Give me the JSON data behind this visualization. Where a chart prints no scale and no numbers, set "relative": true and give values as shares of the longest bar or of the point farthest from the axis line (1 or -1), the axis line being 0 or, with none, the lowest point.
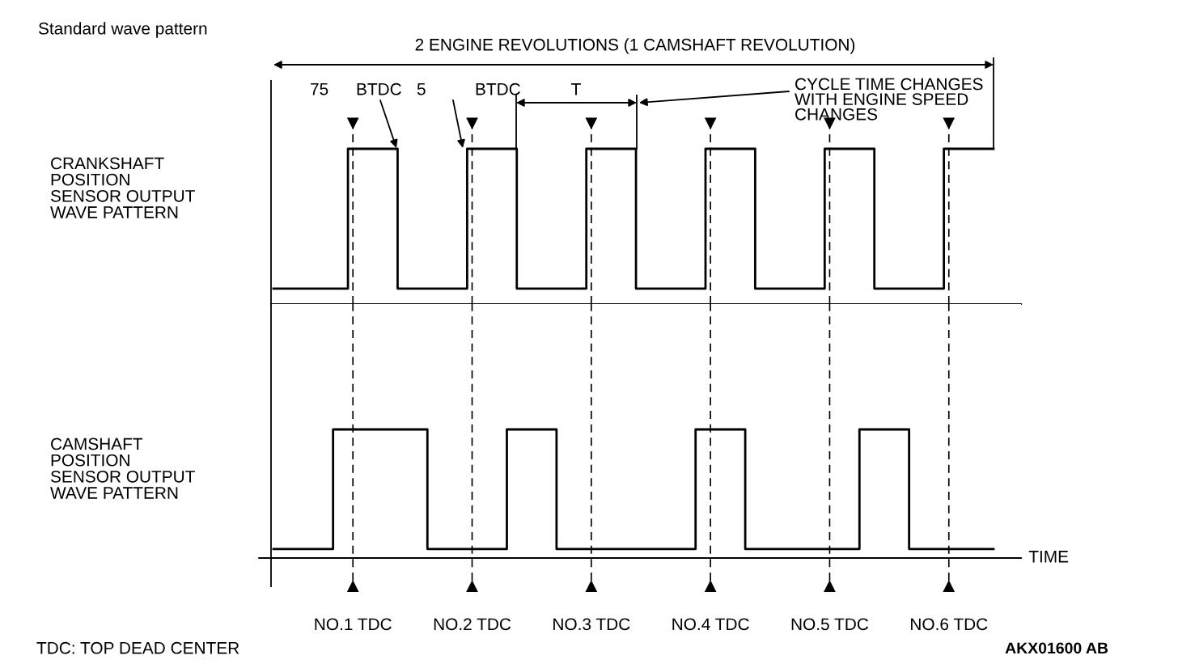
{
  "chart_data": [
    {
      "type": "step",
      "title": "Standard wave pattern",
      "relative": true,
      "ylabel": "CRANKSHAFT\nPOSITION\nSENSOR OUTPUT\nWAVE PATTERN",
      "tick_labels": false,
      "grid": "x",
      "line_style": "solid",
      "categories": [
        null,
        null,
        null,
        null,
        null,
        null,
        null,
        null,
        null,
        null,
        null,
        null,
        null,
        null,
        null,
        null,
        null,
        null,
        null,
        null,
        null,
        null,
        null,
        null,
        null,
        null,
        null,
        null,
        null,
        null,
        null,
        null,
        null,
        null,
        null,
        null,
        null,
        null,
        null,
        null,
        null,
        null,
        null,
        null,
        null,
        null,
        null,
        null,
        null,
        null,
        null,
        null,
        null,
        null,
        null,
        null,
        null,
        null,
        null,
        null,
        null,
        null,
        null,
        null,
        null,
        null,
        null,
        null,
        null,
        null,
        null,
        null,
        null,
        null,
        null,
        null,
        null,
        null,
        null,
        null,
        null,
        null,
        null,
        null,
        null,
        null,
        null,
        null,
        null,
        null,
        null,
        null,
        null,
        null,
        null,
        null,
        null,
        null,
        null,
        null,
        null,
        null,
        null,
        null,
        null,
        null,
        null,
        null,
        null,
        null,
        null,
        null,
        null,
        null,
        null,
        null,
        null,
        null,
        null,
        null,
        null,
        null,
        null,
        null,
        null,
        null,
        null,
        null,
        null,
        null,
        null,
        null,
        null,
        null,
        null,
        null,
        null,
        null,
        null,
        null,
        null,
        null,
        null,
        null,
        null,
        null
      ],
      "series": [
        {
          "color": "#000000",
          "values": [
            0.1,
            0.1,
            0.1,
            0.1,
            0.1,
            0.1,
            0.1,
            0.1,
            0.1,
            0.1,
            0.1,
            0.1,
            0.1,
            0.1,
            0.1,
            1,
            1,
            1,
            1,
            1,
            1,
            1,
            1,
            1,
            1,
            0.1,
            0.1,
            0.1,
            0.1,
            0.1,
            0.1,
            0.1,
            0.1,
            0.1,
            0.1,
            0.1,
            0.1,
            0.1,
            0.1,
            1,
            1,
            1,
            1,
            1,
            1,
            1,
            1,
            1,
            1,
            0.1,
            0.1,
            0.1,
            0.1,
            0.1,
            0.1,
            0.1,
            0.1,
            0.1,
            0.1,
            0.1,
            0.1,
            0.1,
            0.1,
            1,
            1,
            1,
            1,
            1,
            1,
            1,
            1,
            1,
            1,
            0.1,
            0.1,
            0.1,
            0.1,
            0.1,
            0.1,
            0.1,
            0.1,
            0.1,
            0.1,
            0.1,
            0.1,
            0.1,
            0.1,
            1,
            1,
            1,
            1,
            1,
            1,
            1,
            1,
            1,
            1,
            0.1,
            0.1,
            0.1,
            0.1,
            0.1,
            0.1,
            0.1,
            0.1,
            0.1,
            0.1,
            0.1,
            0.1,
            0.1,
            0.1,
            1,
            1,
            1,
            1,
            1,
            1,
            1,
            1,
            1,
            1,
            0.1,
            0.1,
            0.1,
            0.1,
            0.1,
            0.1,
            0.1,
            0.1,
            0.1,
            0.1,
            0.1,
            0.1,
            0.1,
            0.1,
            1,
            1,
            1,
            1,
            1,
            1,
            1,
            1,
            1,
            1,
            1
          ]
        }
      ],
      "annotations": [
        "2 ENGINE REVOLUTIONS (1 CAMSHAFT REVOLUTION)",
        "75",
        "BTDC",
        "5",
        "BTDC",
        "T",
        "CYCLE TIME CHANGES\nWITH ENGINE SPEED\nCHANGES"
      ]
    },
    {
      "type": "step",
      "relative": true,
      "ylabel": "CAMSHAFT\nPOSITION\nSENSOR OUTPUT\nWAVE PATTERN",
      "xlabel": "TIME",
      "tick_labels": "x",
      "grid": "x",
      "line_style": "solid",
      "categories": [
        null,
        null,
        null,
        null,
        null,
        null,
        null,
        null,
        null,
        null,
        null,
        null,
        null,
        null,
        null,
        null,
        "NO.1 TDC",
        null,
        null,
        null,
        null,
        null,
        null,
        null,
        null,
        null,
        null,
        null,
        null,
        null,
        null,
        null,
        null,
        null,
        null,
        null,
        null,
        null,
        null,
        null,
        "NO.2 TDC",
        null,
        null,
        null,
        null,
        null,
        null,
        null,
        null,
        null,
        null,
        null,
        null,
        null,
        null,
        null,
        null,
        null,
        null,
        null,
        null,
        null,
        null,
        null,
        "NO.3 TDC",
        null,
        null,
        null,
        null,
        null,
        null,
        null,
        null,
        null,
        null,
        null,
        null,
        null,
        null,
        null,
        null,
        null,
        null,
        null,
        null,
        null,
        null,
        null,
        "NO.4 TDC",
        null,
        null,
        null,
        null,
        null,
        null,
        null,
        null,
        null,
        null,
        null,
        null,
        null,
        null,
        null,
        null,
        null,
        null,
        null,
        null,
        null,
        null,
        null,
        "NO.5 TDC",
        null,
        null,
        null,
        null,
        null,
        null,
        null,
        null,
        null,
        null,
        null,
        null,
        null,
        null,
        null,
        null,
        null,
        null,
        null,
        null,
        null,
        null,
        null,
        "NO.6 TDC",
        null,
        null,
        null,
        null,
        null,
        null,
        null,
        null,
        null
      ],
      "series": [
        {
          "color": "#000000",
          "values": [
            0.07,
            0.07,
            0.07,
            0.07,
            0.07,
            0.07,
            0.07,
            0.07,
            0.07,
            0.07,
            0.07,
            0.07,
            1,
            1,
            1,
            1,
            1,
            1,
            1,
            1,
            1,
            1,
            1,
            1,
            1,
            1,
            1,
            1,
            1,
            1,
            1,
            0.07,
            0.07,
            0.07,
            0.07,
            0.07,
            0.07,
            0.07,
            0.07,
            0.07,
            0.07,
            0.07,
            0.07,
            0.07,
            0.07,
            0.07,
            0.07,
            1,
            1,
            1,
            1,
            1,
            1,
            1,
            1,
            1,
            1,
            0.07,
            0.07,
            0.07,
            0.07,
            0.07,
            0.07,
            0.07,
            0.07,
            0.07,
            0.07,
            0.07,
            0.07,
            0.07,
            0.07,
            0.07,
            0.07,
            0.07,
            0.07,
            0.07,
            0.07,
            0.07,
            0.07,
            0.07,
            0.07,
            0.07,
            0.07,
            0.07,
            0.07,
            1,
            1,
            1,
            1,
            1,
            1,
            1,
            1,
            1,
            1,
            0.07,
            0.07,
            0.07,
            0.07,
            0.07,
            0.07,
            0.07,
            0.07,
            0.07,
            0.07,
            0.07,
            0.07,
            0.07,
            0.07,
            0.07,
            0.07,
            0.07,
            0.07,
            0.07,
            0.07,
            0.07,
            0.07,
            0.07,
            1,
            1,
            1,
            1,
            1,
            1,
            1,
            1,
            1,
            1,
            0.07,
            0.07,
            0.07,
            0.07,
            0.07,
            0.07,
            0.07,
            0.07,
            0.07,
            0.07,
            0.07,
            0.07,
            0.07,
            0.07,
            0.07,
            0.07,
            0.07,
            0.07
          ]
        }
      ],
      "annotations": [
        "TDC: TOP DEAD CENTER",
        "AKX01600 AB"
      ]
    }
  ]
}
